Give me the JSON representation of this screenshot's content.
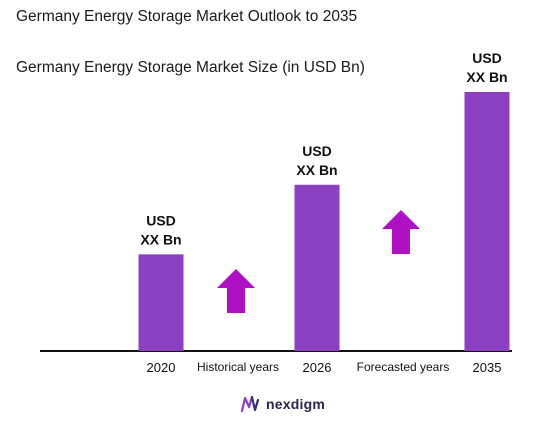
{
  "title": "Germany Energy Storage Market Outlook to 2035",
  "subtitle": "Germany Energy Storage Market Size (in USD Bn)",
  "colors": {
    "bar": "#8a40c0",
    "arrow": "#b010c4",
    "axis": "#111111"
  },
  "chart_data": {
    "type": "bar",
    "categories": [
      "2020",
      "2026",
      "2035"
    ],
    "values": [
      1.0,
      1.72,
      2.68
    ],
    "data_labels": [
      {
        "line1": "USD",
        "line2": "XX Bn"
      },
      {
        "line1": "USD",
        "line2": "XX Bn"
      },
      {
        "line1": "USD",
        "line2": "XX Bn"
      }
    ],
    "period_labels": [
      "Historical years",
      "Forecasted years"
    ],
    "ylim": [
      0,
      2.68
    ],
    "grid": false,
    "legend": "none"
  },
  "logo": {
    "text": "nexdigm",
    "icon": "nexdigm-logo-icon"
  }
}
